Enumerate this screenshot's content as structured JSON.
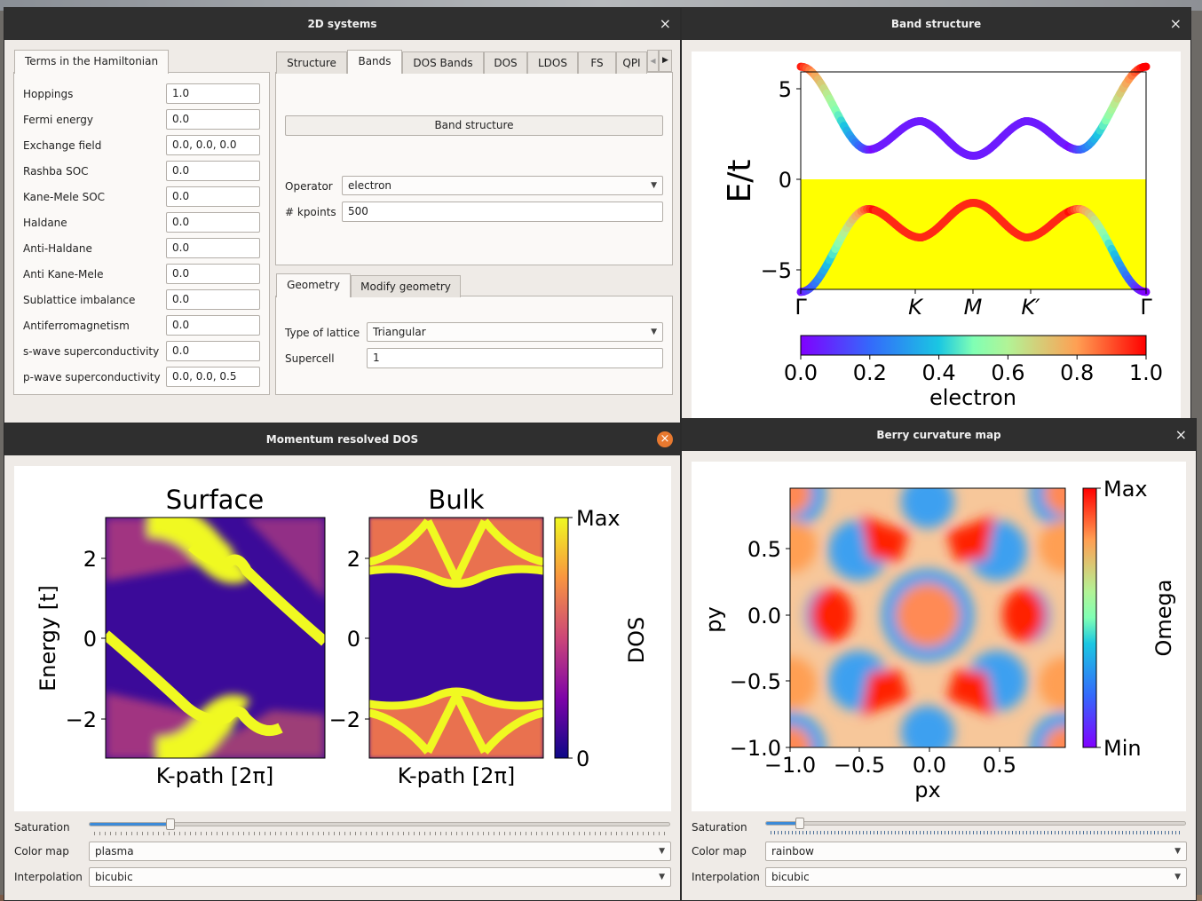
{
  "windows": {
    "systems": {
      "title": "2D systems",
      "close": "×"
    },
    "bands": {
      "title": "Band structure",
      "close": "×"
    },
    "kdos": {
      "title": "Momentum resolved DOS",
      "close": "×"
    },
    "berry": {
      "title": "Berry curvature map",
      "close": "×"
    }
  },
  "hamiltonian": {
    "tab": "Terms in the Hamiltonian",
    "terms": [
      {
        "label": "Hoppings",
        "value": "1.0"
      },
      {
        "label": "Fermi energy",
        "value": "0.0"
      },
      {
        "label": "Exchange field",
        "value": "0.0, 0.0, 0.0"
      },
      {
        "label": "Rashba SOC",
        "value": "0.0"
      },
      {
        "label": "Kane-Mele SOC",
        "value": "0.0"
      },
      {
        "label": "Haldane",
        "value": "0.0"
      },
      {
        "label": "Anti-Haldane",
        "value": "0.0"
      },
      {
        "label": "Anti Kane-Mele",
        "value": "0.0"
      },
      {
        "label": "Sublattice imbalance",
        "value": "0.0"
      },
      {
        "label": "Antiferromagnetism",
        "value": "0.0"
      },
      {
        "label": "s-wave superconductivity",
        "value": "0.0"
      },
      {
        "label": "p-wave superconductivity",
        "value": "0.0, 0.0, 0.5"
      }
    ]
  },
  "calc_tabs": {
    "tabs": [
      "Structure",
      "Bands",
      "DOS Bands",
      "DOS",
      "LDOS",
      "FS",
      "QPI"
    ],
    "active": "Bands",
    "scroll_left": "◀",
    "scroll_right": "▶",
    "band_button": "Band structure",
    "operator_label": "Operator",
    "operator_value": "electron",
    "kpoints_label": "# kpoints",
    "kpoints_value": "500"
  },
  "geometry_tabs": {
    "tabs": [
      "Geometry",
      "Modify geometry"
    ],
    "active": "Geometry",
    "lattice_label": "Type of lattice",
    "lattice_value": "Triangular",
    "supercell_label": "Supercell",
    "supercell_value": "1"
  },
  "band_plot": {
    "ylabel": "E/t",
    "yticks": [
      "5",
      "0",
      "−5"
    ],
    "kpath_labels": [
      "Γ",
      "K",
      "M",
      "K′",
      "Γ"
    ],
    "cbar_ticks": [
      "0.0",
      "0.2",
      "0.4",
      "0.6",
      "0.8",
      "1.0"
    ],
    "cbar_label": "electron"
  },
  "kdos_plot": {
    "titles": [
      "Surface",
      "Bulk"
    ],
    "ylabel": "Energy [t]",
    "xlabel": "K-path [2π]",
    "yticks": [
      "2",
      "0",
      "−2"
    ],
    "cbar_label": "DOS",
    "cbar_max": "Max",
    "cbar_min": "0"
  },
  "berry_plot": {
    "xlabel": "px",
    "ylabel": "py",
    "xticks": [
      "−1.0",
      "−0.5",
      "0.0",
      "0.5"
    ],
    "yticks": [
      "0.5",
      "0.0",
      "−0.5",
      "−1.0"
    ],
    "cbar_label": "Omega",
    "cbar_max": "Max",
    "cbar_min": "Min"
  },
  "kdos_controls": {
    "saturation_label": "Saturation",
    "saturation": 0.14,
    "colormap_label": "Color map",
    "colormap_value": "plasma",
    "interp_label": "Interpolation",
    "interp_value": "bicubic"
  },
  "berry_controls": {
    "saturation_label": "Saturation",
    "saturation": 0.08,
    "colormap_label": "Color map",
    "colormap_value": "rainbow",
    "interp_label": "Interpolation",
    "interp_value": "bicubic"
  },
  "colors": {
    "titlebar": "#2f2f2f",
    "window_bg": "#efebe7",
    "accent": "#3b8ad8",
    "fermi_fill": "#ffff00"
  }
}
